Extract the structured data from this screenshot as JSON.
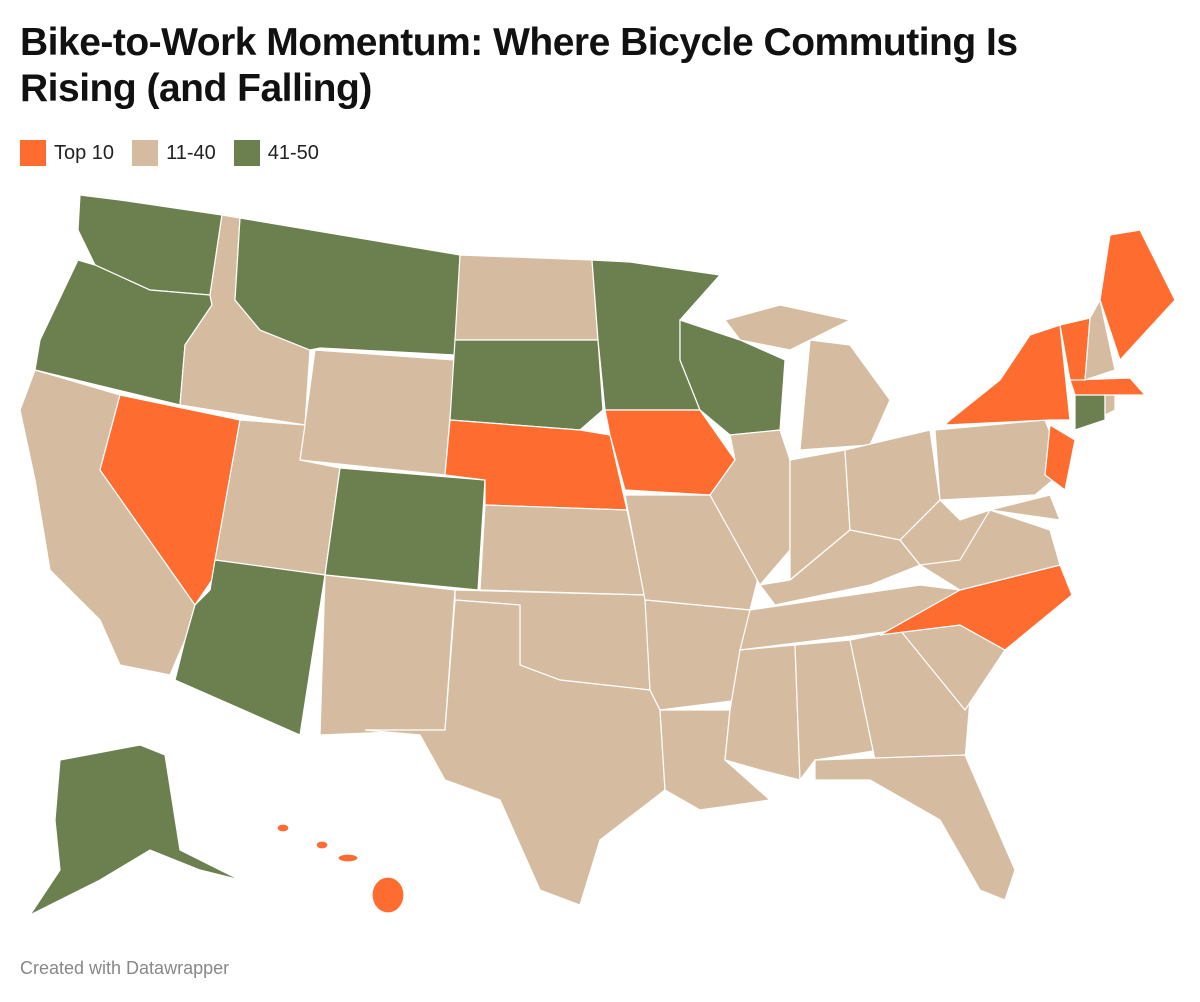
{
  "header": {
    "title": "Bike-to-Work Momentum: Where Bicycle Commuting Is Rising (and Falling)"
  },
  "legend": [
    {
      "label": "Top 10",
      "color": "#ff6c2f"
    },
    {
      "label": "11-40",
      "color": "#d5bca1"
    },
    {
      "label": "41-50",
      "color": "#6b7f4f"
    }
  ],
  "footer": "Created with Datawrapper"
}
